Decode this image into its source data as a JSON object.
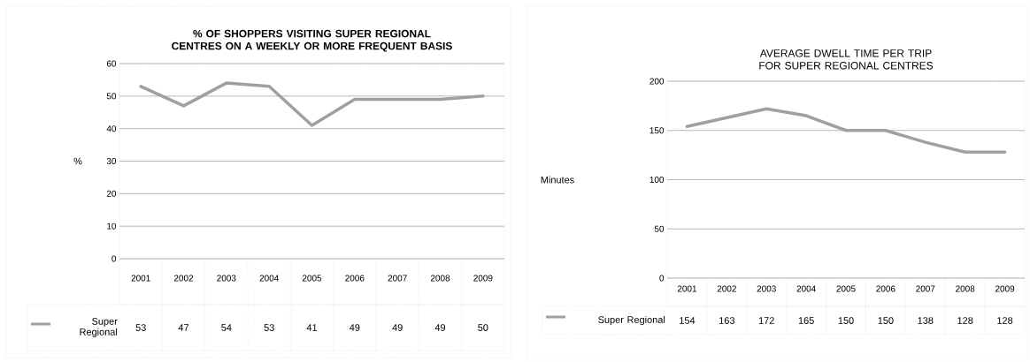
{
  "chart_data": [
    {
      "type": "line",
      "title": "% OF SHOPPERS VISITING SUPER REGIONAL CENTRES ON A WEEKLY OR MORE FREQUENT BASIS",
      "ylabel": "%",
      "categories": [
        "2001",
        "2002",
        "2003",
        "2004",
        "2005",
        "2006",
        "2007",
        "2008",
        "2009"
      ],
      "series": [
        {
          "name": "Super Regional",
          "color": "#a0a0a0",
          "values": [
            53,
            47,
            54,
            53,
            41,
            49,
            49,
            49,
            50
          ]
        }
      ],
      "ylim": [
        0,
        60
      ],
      "yticks": [
        0,
        10,
        20,
        30,
        40,
        50,
        60
      ],
      "grid": "y",
      "legend": "bottom left",
      "data_labels": true,
      "marker": "none",
      "line_style": "solid"
    },
    {
      "type": "line",
      "title": "AVERAGE DWELL TIME PER TRIP FOR SUPER REGIONAL CENTRES",
      "ylabel": "Minutes",
      "categories": [
        "2001",
        "2002",
        "2003",
        "2004",
        "2005",
        "2006",
        "2007",
        "2008",
        "2009"
      ],
      "series": [
        {
          "name": "Super Regional",
          "color": "#a0a0a0",
          "values": [
            154,
            163,
            172,
            165,
            150,
            150,
            138,
            128,
            128
          ]
        }
      ],
      "ylim": [
        0,
        200
      ],
      "yticks": [
        0,
        50,
        100,
        150,
        200
      ],
      "grid": "y",
      "legend": "bottom left",
      "data_labels": true,
      "marker": "none",
      "line_style": "solid"
    }
  ]
}
